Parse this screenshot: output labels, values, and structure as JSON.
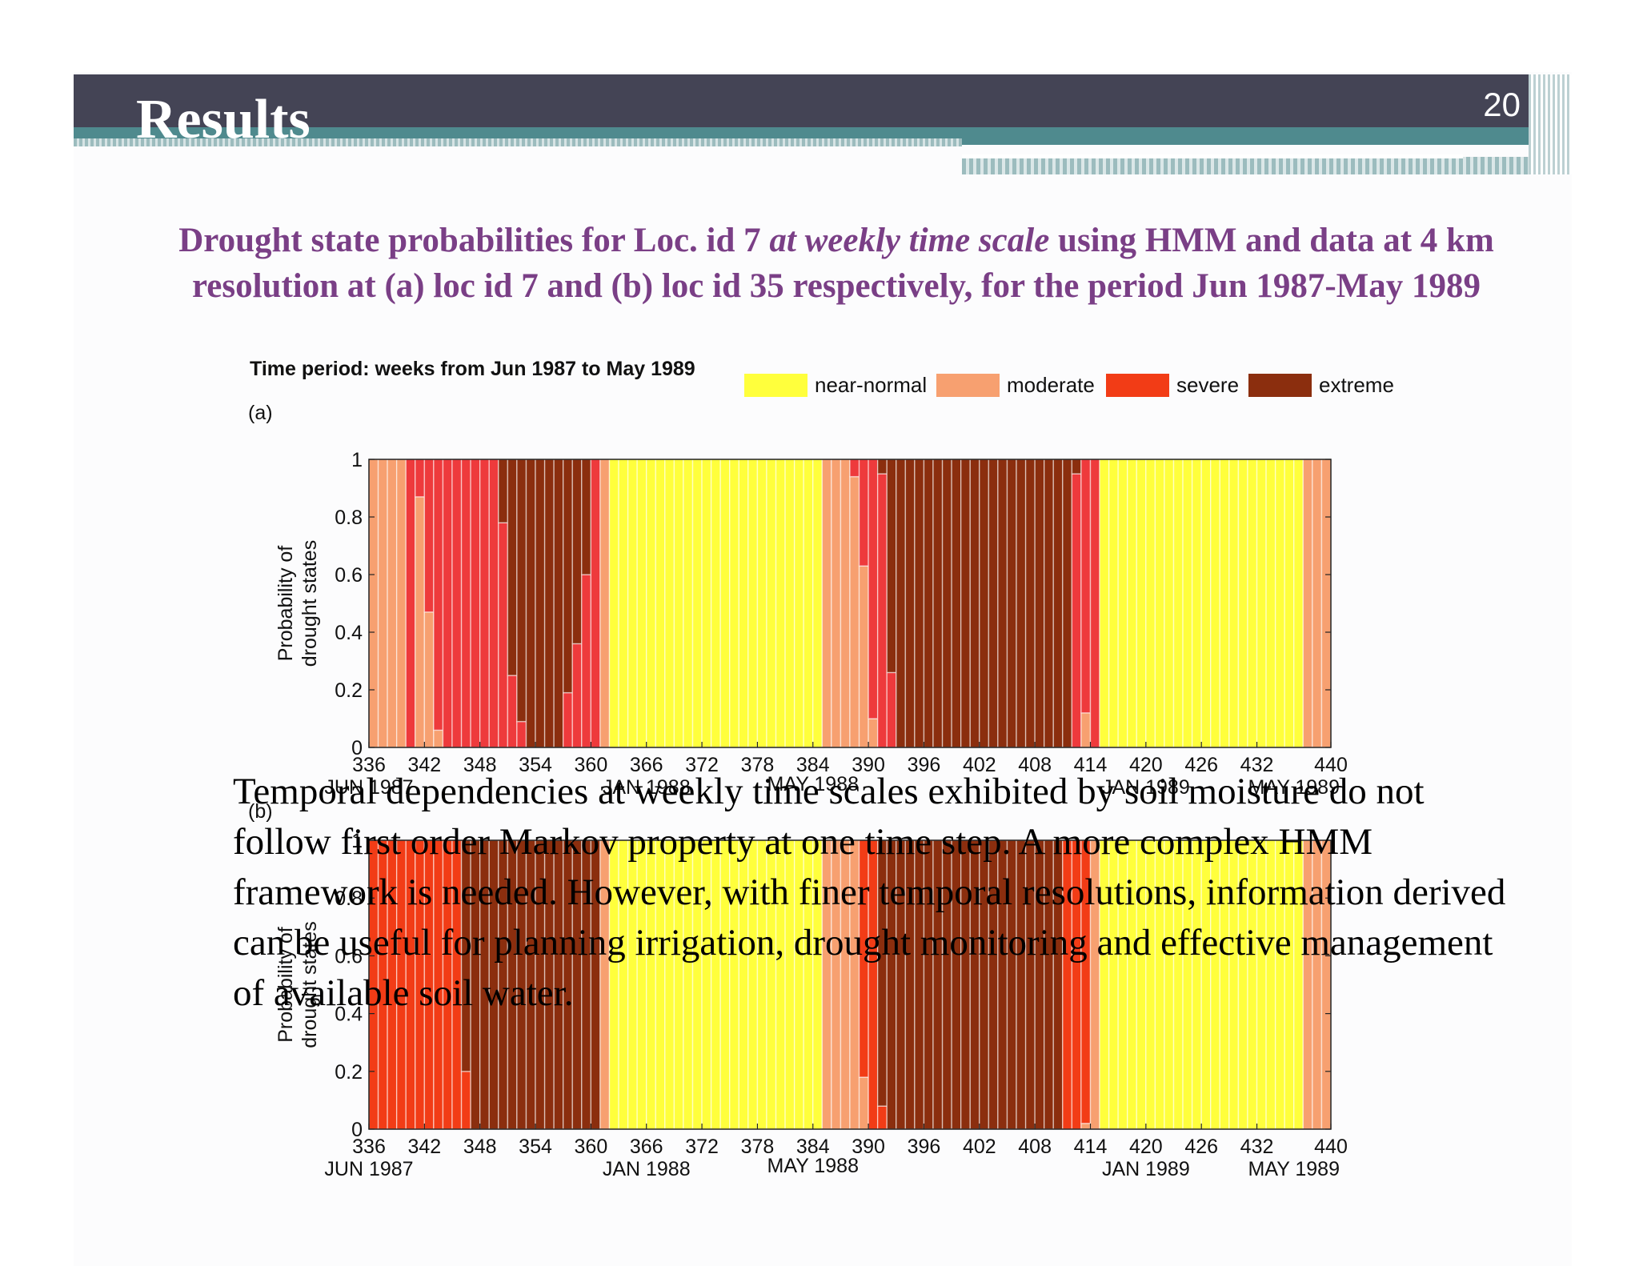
{
  "slide": {
    "title": "Results",
    "number": "20",
    "subtitle_line1_a": "Drought state probabilities for Loc. id 7 ",
    "subtitle_line1_b": "at weekly time scale",
    "subtitle_line1_c": " using HMM and data at 4 km",
    "subtitle_line2": "resolution at (a) loc id 7 and (b) loc id 35 respectively, for the period Jun 1987-May 1989",
    "conclusion": "Temporal dependencies at weekly time scales exhibited by soil moisture do not follow first order Markov property at one time step. A more complex HMM framework is needed. However, with finer temporal resolutions, information derived can be useful for planning irrigation, drought monitoring and effective management of available soil water."
  },
  "chart_data": [
    {
      "type": "stacked-bar",
      "panel_label": "(a)",
      "period_label": "Time period: weeks from Jun 1987 to May 1989",
      "ylabel": "Probability of drought states",
      "ylim": [
        0,
        1
      ],
      "y_ticks": [
        "0",
        "0.2",
        "0.4",
        "0.6",
        "0.8",
        "1"
      ],
      "x_range": [
        336,
        440
      ],
      "x_ticks": [
        "336",
        "342",
        "348",
        "354",
        "360",
        "366",
        "372",
        "378",
        "384",
        "390",
        "396",
        "402",
        "408",
        "414",
        "420",
        "426",
        "432",
        "440"
      ],
      "month_labels": [
        {
          "text": "JUN 1987",
          "week": 336
        },
        {
          "text": "JAN 1988",
          "week": 366
        },
        {
          "text": "MAY 1988",
          "week": 384
        },
        {
          "text": "JAN 1989",
          "week": 420
        },
        {
          "text": "MAY 1989",
          "week": 436
        }
      ],
      "legend": [
        "near-normal",
        "moderate",
        "severe",
        "extreme"
      ],
      "colors": {
        "near-normal": "#ffff3c",
        "moderate": "#f7a070",
        "severe": "#ee3a3c",
        "extreme": "#8b2e0e"
      },
      "segments": [
        {
          "from": 336,
          "to": 340,
          "state": "moderate"
        },
        {
          "from": 340,
          "to": 345,
          "state": "severe"
        },
        {
          "from": 341,
          "to": 342,
          "partial": [
            [
              "moderate",
              0.87
            ],
            [
              "severe",
              0.13
            ]
          ]
        },
        {
          "from": 342,
          "to": 343,
          "partial": [
            [
              "moderate",
              0.47
            ],
            [
              "severe",
              0.53
            ]
          ]
        },
        {
          "from": 343,
          "to": 344,
          "partial": [
            [
              "moderate",
              0.06
            ],
            [
              "severe",
              0.94
            ]
          ]
        },
        {
          "from": 345,
          "to": 350,
          "state": "severe"
        },
        {
          "from": 350,
          "to": 351,
          "partial": [
            [
              "severe",
              0.78
            ],
            [
              "extreme",
              0.22
            ]
          ]
        },
        {
          "from": 351,
          "to": 352,
          "partial": [
            [
              "severe",
              0.25
            ],
            [
              "extreme",
              0.75
            ]
          ]
        },
        {
          "from": 352,
          "to": 353,
          "partial": [
            [
              "severe",
              0.09
            ],
            [
              "extreme",
              0.91
            ]
          ]
        },
        {
          "from": 353,
          "to": 359,
          "state": "extreme"
        },
        {
          "from": 357,
          "to": 358,
          "partial": [
            [
              "severe",
              0.19
            ],
            [
              "extreme",
              0.81
            ]
          ]
        },
        {
          "from": 358,
          "to": 359,
          "partial": [
            [
              "severe",
              0.36
            ],
            [
              "extreme",
              0.64
            ]
          ]
        },
        {
          "from": 359,
          "to": 360,
          "partial": [
            [
              "severe",
              0.6
            ],
            [
              "extreme",
              0.4
            ]
          ]
        },
        {
          "from": 360,
          "to": 361,
          "state": "severe"
        },
        {
          "from": 361,
          "to": 362,
          "state": "moderate"
        },
        {
          "from": 362,
          "to": 385,
          "state": "near-normal"
        },
        {
          "from": 385,
          "to": 388,
          "state": "moderate"
        },
        {
          "from": 388,
          "to": 389,
          "partial": [
            [
              "moderate",
              0.94
            ],
            [
              "severe",
              0.06
            ]
          ]
        },
        {
          "from": 389,
          "to": 390,
          "partial": [
            [
              "moderate",
              0.63
            ],
            [
              "severe",
              0.37
            ]
          ]
        },
        {
          "from": 390,
          "to": 391,
          "partial": [
            [
              "moderate",
              0.1
            ],
            [
              "severe",
              0.9
            ]
          ]
        },
        {
          "from": 391,
          "to": 392,
          "partial": [
            [
              "severe",
              0.95
            ],
            [
              "extreme",
              0.05
            ]
          ]
        },
        {
          "from": 392,
          "to": 393,
          "partial": [
            [
              "severe",
              0.26
            ],
            [
              "extreme",
              0.74
            ]
          ]
        },
        {
          "from": 393,
          "to": 412,
          "state": "extreme"
        },
        {
          "from": 412,
          "to": 413,
          "partial": [
            [
              "severe",
              0.95
            ],
            [
              "extreme",
              0.05
            ]
          ]
        },
        {
          "from": 413,
          "to": 414,
          "partial": [
            [
              "moderate",
              0.12
            ],
            [
              "severe",
              0.88
            ]
          ]
        },
        {
          "from": 414,
          "to": 415,
          "state": "severe"
        },
        {
          "from": 415,
          "to": 437,
          "state": "near-normal"
        },
        {
          "from": 437,
          "to": 440,
          "state": "moderate"
        }
      ]
    },
    {
      "type": "stacked-bar",
      "panel_label": "(b)",
      "ylabel": "Probability of drought states",
      "ylim": [
        0,
        1
      ],
      "y_ticks": [
        "0",
        "0.2",
        "0.4",
        "0.6",
        "0.8",
        "1"
      ],
      "x_range": [
        336,
        440
      ],
      "x_ticks": [
        "336",
        "342",
        "348",
        "354",
        "360",
        "366",
        "372",
        "378",
        "384",
        "390",
        "396",
        "402",
        "408",
        "414",
        "420",
        "426",
        "432",
        "440"
      ],
      "month_labels": [
        {
          "text": "JUN 1987",
          "week": 336
        },
        {
          "text": "JAN 1988",
          "week": 366
        },
        {
          "text": "MAY 1988",
          "week": 384
        },
        {
          "text": "JAN 1989",
          "week": 420
        },
        {
          "text": "MAY 1989",
          "week": 436
        }
      ],
      "legend": [
        "near-normal",
        "moderate",
        "severe",
        "extreme"
      ],
      "colors": {
        "near-normal": "#ffff3c",
        "moderate": "#f7a070",
        "severe": "#f23c16",
        "extreme": "#8b2e0e"
      },
      "segments": [
        {
          "from": 336,
          "to": 346,
          "state": "severe"
        },
        {
          "from": 346,
          "to": 347,
          "partial": [
            [
              "severe",
              0.2
            ],
            [
              "extreme",
              0.8
            ]
          ]
        },
        {
          "from": 347,
          "to": 361,
          "state": "extreme"
        },
        {
          "from": 361,
          "to": 362,
          "state": "moderate"
        },
        {
          "from": 362,
          "to": 385,
          "state": "near-normal"
        },
        {
          "from": 385,
          "to": 389,
          "state": "moderate"
        },
        {
          "from": 389,
          "to": 390,
          "partial": [
            [
              "moderate",
              0.18
            ],
            [
              "severe",
              0.82
            ]
          ]
        },
        {
          "from": 390,
          "to": 391,
          "state": "severe"
        },
        {
          "from": 391,
          "to": 392,
          "partial": [
            [
              "severe",
              0.08
            ],
            [
              "extreme",
              0.92
            ]
          ]
        },
        {
          "from": 392,
          "to": 411,
          "state": "extreme"
        },
        {
          "from": 411,
          "to": 414,
          "state": "severe"
        },
        {
          "from": 413,
          "to": 414,
          "partial": [
            [
              "moderate",
              0.02
            ],
            [
              "severe",
              0.98
            ]
          ]
        },
        {
          "from": 414,
          "to": 415,
          "state": "moderate"
        },
        {
          "from": 415,
          "to": 437,
          "state": "near-normal"
        },
        {
          "from": 437,
          "to": 440,
          "state": "moderate"
        }
      ]
    }
  ]
}
